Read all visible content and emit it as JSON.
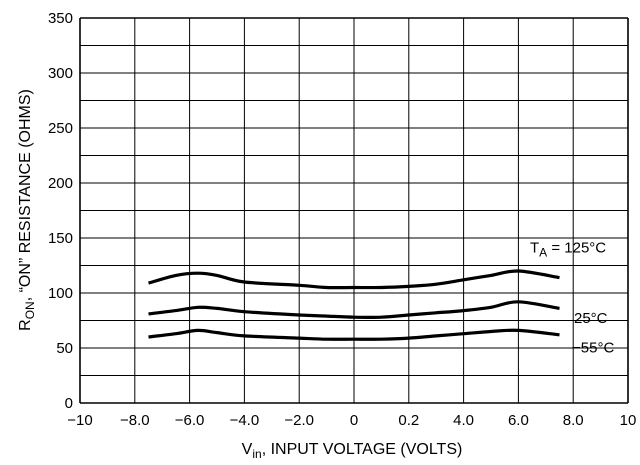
{
  "chart_data": {
    "type": "line",
    "xlabel": {
      "main": "V",
      "sub": "in",
      "rest": ", INPUT VOLTAGE (VOLTS)"
    },
    "ylabel": {
      "main": "R",
      "sub": "ON",
      "rest": ", “ON” RESISTANCE (OHMS)"
    },
    "x_ticks": [
      "−10",
      "−8.0",
      "−6.0",
      "−4.0",
      "−2.0",
      "0",
      "0.2",
      "4.0",
      "6.0",
      "8.0",
      "10"
    ],
    "y_ticks": [
      "0",
      "50",
      "100",
      "150",
      "200",
      "250",
      "300",
      "350"
    ],
    "xlim": [
      -10,
      10
    ],
    "ylim": [
      0,
      350
    ],
    "grid": true,
    "series": [
      {
        "label_main": "T",
        "label_sub": "A",
        "label_rest": " = 125°C",
        "x": [
          -7.5,
          -6.5,
          -5.7,
          -5.0,
          -4.0,
          -2.0,
          -1.0,
          0,
          1.0,
          2.0,
          3.0,
          4.0,
          5.0,
          6.0,
          7.5
        ],
        "y": [
          109,
          116,
          118,
          116,
          110,
          107,
          105,
          105,
          105,
          106,
          108,
          112,
          116,
          120,
          114
        ]
      },
      {
        "label_main": "25°C",
        "label_sub": "",
        "label_rest": "",
        "x": [
          -7.5,
          -6.5,
          -5.7,
          -5.0,
          -4.0,
          -2.0,
          -1.0,
          0,
          1.0,
          2.0,
          3.0,
          4.0,
          5.0,
          6.0,
          7.5
        ],
        "y": [
          81,
          84,
          87,
          86,
          83,
          80,
          79,
          78,
          78,
          80,
          82,
          84,
          87,
          92,
          86
        ]
      },
      {
        "label_main": "−55°C",
        "label_sub": "",
        "label_rest": "",
        "x": [
          -7.5,
          -6.5,
          -5.7,
          -5.0,
          -4.0,
          -2.0,
          -1.0,
          0,
          1.0,
          2.0,
          3.0,
          4.0,
          5.0,
          6.0,
          7.5
        ],
        "y": [
          60,
          63,
          66,
          64,
          61,
          59,
          58,
          58,
          58,
          59,
          61,
          63,
          65,
          66,
          62
        ]
      }
    ]
  }
}
